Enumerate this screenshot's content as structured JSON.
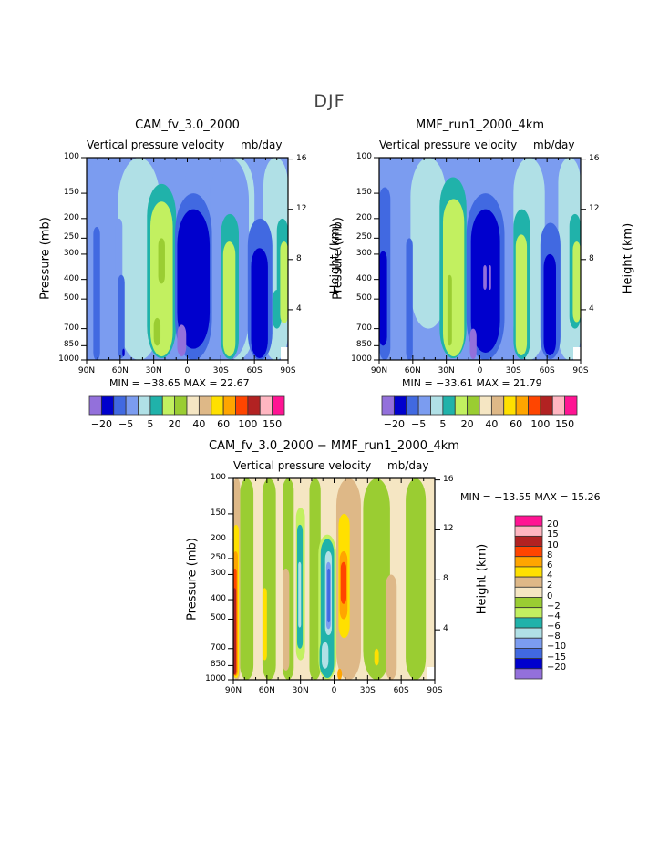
{
  "figure_title": "DJF",
  "palette": {
    "cam_mmf": [
      "#9370db",
      "#0000cd",
      "#4169e1",
      "#7b9cf0",
      "#b0e0e6",
      "#20b2aa",
      "#c2f060",
      "#9acd32",
      "#f5e6c3",
      "#deb887",
      "#ffe000",
      "#ffa500",
      "#ff4500",
      "#b22222",
      "#ffb6c1",
      "#ff1493"
    ],
    "diff": [
      "#9370db",
      "#0000cd",
      "#4169e1",
      "#7b9cf0",
      "#b0e0e6",
      "#20b2aa",
      "#c2f060",
      "#9acd32",
      "#f5e6c3",
      "#deb887",
      "#ffe000",
      "#ffa500",
      "#ff4500",
      "#b22222",
      "#ffb6c1",
      "#ff1493"
    ]
  },
  "chart_data": [
    {
      "type": "heatmap",
      "id": "cam",
      "title": "CAM_fv_3.0_2000",
      "subtitle_left": "Vertical pressure velocity",
      "subtitle_right": "mb/day",
      "ylabel": "Pressure (mb)",
      "y2label": "Height (km)",
      "xticks": [
        "90N",
        "60N",
        "30N",
        "0",
        "30S",
        "60S",
        "90S"
      ],
      "xlim": [
        90,
        -90
      ],
      "yticks": [
        "100",
        "150",
        "200",
        "250",
        "300",
        "400",
        "500",
        "700",
        "850",
        "1000"
      ],
      "ylim_mb": [
        1000,
        100
      ],
      "y2ticks": [
        "16",
        "12",
        "8",
        "4"
      ],
      "min_label": "MIN = −38.65",
      "max_label": "MAX =  22.67",
      "min": -38.65,
      "max": 22.67,
      "colorbar_labels": [
        "−20",
        "−5",
        "5",
        "20",
        "40",
        "60",
        "100",
        "150"
      ],
      "background_level": 3,
      "features": [
        {
          "lat": [
            90,
            62
          ],
          "p": [
            1000,
            100
          ],
          "level": 3
        },
        {
          "lat": [
            62,
            24
          ],
          "p": [
            1000,
            100
          ],
          "level": 4
        },
        {
          "lat": [
            -30,
            -60
          ],
          "p": [
            1000,
            100
          ],
          "level": 4
        },
        {
          "lat": [
            -68,
            -90
          ],
          "p": [
            1000,
            100
          ],
          "level": 4
        },
        {
          "lat": [
            2,
            -20
          ],
          "p": [
            1000,
            100
          ],
          "level": 3
        },
        {
          "lat": [
            -20,
            -55
          ],
          "p": [
            1000,
            100
          ],
          "level": 3
        },
        {
          "lat": [
            90,
            80
          ],
          "p": [
            1000,
            420
          ],
          "level": 3
        },
        {
          "lat": [
            84,
            78
          ],
          "p": [
            1000,
            220
          ],
          "level": 2
        },
        {
          "lat": [
            64,
            58
          ],
          "p": [
            1000,
            200
          ],
          "level": 3
        },
        {
          "lat": [
            62,
            56
          ],
          "p": [
            980,
            380
          ],
          "level": 2
        },
        {
          "lat": [
            58,
            56
          ],
          "p": [
            960,
            880
          ],
          "level": 1
        },
        {
          "lat": [
            36,
            10
          ],
          "p": [
            980,
            135
          ],
          "level": 5
        },
        {
          "lat": [
            33,
            13
          ],
          "p": [
            960,
            165
          ],
          "level": 6
        },
        {
          "lat": [
            26,
            20
          ],
          "p": [
            420,
            250
          ],
          "level": 7
        },
        {
          "lat": [
            30,
            24
          ],
          "p": [
            850,
            620
          ],
          "level": 7
        },
        {
          "lat": [
            11,
            -22
          ],
          "p": [
            1000,
            150
          ],
          "level": 2
        },
        {
          "lat": [
            9,
            -20
          ],
          "p": [
            880,
            180
          ],
          "level": 1
        },
        {
          "lat": [
            9,
            1
          ],
          "p": [
            960,
            670
          ],
          "level": 0
        },
        {
          "lat": [
            -30,
            -46
          ],
          "p": [
            990,
            190
          ],
          "level": 5
        },
        {
          "lat": [
            -32,
            -43
          ],
          "p": [
            960,
            260
          ],
          "level": 6
        },
        {
          "lat": [
            -54,
            -76
          ],
          "p": [
            1000,
            200
          ],
          "level": 2
        },
        {
          "lat": [
            -57,
            -72
          ],
          "p": [
            980,
            280
          ],
          "level": 1
        },
        {
          "lat": [
            -76,
            -84
          ],
          "p": [
            700,
            450
          ],
          "level": 5
        },
        {
          "lat": [
            -80,
            -90
          ],
          "p": [
            640,
            200
          ],
          "level": 5
        },
        {
          "lat": [
            -83,
            -90
          ],
          "p": [
            660,
            260
          ],
          "level": 6
        }
      ]
    },
    {
      "type": "heatmap",
      "id": "mmf",
      "title": "MMF_run1_2000_4km",
      "subtitle_left": "Vertical pressure velocity",
      "subtitle_right": "mb/day",
      "ylabel": "Pressure (mb)",
      "y2label": "Height (km)",
      "xticks": [
        "90N",
        "60N",
        "30N",
        "0",
        "30S",
        "60S",
        "90S"
      ],
      "xlim": [
        90,
        -90
      ],
      "yticks": [
        "100",
        "150",
        "200",
        "250",
        "300",
        "400",
        "500",
        "700",
        "850",
        "1000"
      ],
      "ylim_mb": [
        1000,
        100
      ],
      "y2ticks": [
        "16",
        "12",
        "8",
        "4"
      ],
      "min_label": "MIN = −33.61",
      "max_label": "MAX =  21.79",
      "min": -33.61,
      "max": 21.79,
      "colorbar_labels": [
        "−20",
        "−5",
        "5",
        "20",
        "40",
        "60",
        "100",
        "150"
      ],
      "background_level": 3,
      "features": [
        {
          "lat": [
            62,
            30
          ],
          "p": [
            700,
            100
          ],
          "level": 4
        },
        {
          "lat": [
            -30,
            -58
          ],
          "p": [
            1000,
            100
          ],
          "level": 4
        },
        {
          "lat": [
            -70,
            -90
          ],
          "p": [
            1000,
            100
          ],
          "level": 4
        },
        {
          "lat": [
            90,
            80
          ],
          "p": [
            1000,
            140
          ],
          "level": 2
        },
        {
          "lat": [
            90,
            83
          ],
          "p": [
            850,
            290
          ],
          "level": 1
        },
        {
          "lat": [
            66,
            60
          ],
          "p": [
            1000,
            250
          ],
          "level": 2
        },
        {
          "lat": [
            36,
            12
          ],
          "p": [
            980,
            125
          ],
          "level": 5
        },
        {
          "lat": [
            33,
            14
          ],
          "p": [
            960,
            160
          ],
          "level": 6
        },
        {
          "lat": [
            29,
            25
          ],
          "p": [
            850,
            380
          ],
          "level": 7
        },
        {
          "lat": [
            12,
            -22
          ],
          "p": [
            1000,
            150
          ],
          "level": 2
        },
        {
          "lat": [
            8,
            -18
          ],
          "p": [
            920,
            180
          ],
          "level": 1
        },
        {
          "lat": [
            -3,
            -6
          ],
          "p": [
            450,
            340
          ],
          "level": 0
        },
        {
          "lat": [
            -8,
            -10
          ],
          "p": [
            450,
            340
          ],
          "level": 0
        },
        {
          "lat": [
            9,
            3
          ],
          "p": [
            990,
            700
          ],
          "level": 0
        },
        {
          "lat": [
            -30,
            -45
          ],
          "p": [
            990,
            180
          ],
          "level": 5
        },
        {
          "lat": [
            -32,
            -42
          ],
          "p": [
            950,
            240
          ],
          "level": 6
        },
        {
          "lat": [
            -54,
            -72
          ],
          "p": [
            990,
            210
          ],
          "level": 2
        },
        {
          "lat": [
            -57,
            -68
          ],
          "p": [
            950,
            300
          ],
          "level": 1
        },
        {
          "lat": [
            -80,
            -90
          ],
          "p": [
            700,
            190
          ],
          "level": 5
        },
        {
          "lat": [
            -83,
            -90
          ],
          "p": [
            650,
            260
          ],
          "level": 6
        }
      ]
    },
    {
      "type": "heatmap",
      "id": "diff",
      "title": "CAM_fv_3.0_2000 − MMF_run1_2000_4km",
      "subtitle_left": "Vertical pressure velocity",
      "subtitle_right": "mb/day",
      "ylabel": "Pressure (mb)",
      "y2label": "Height (km)",
      "xticks": [
        "90N",
        "60N",
        "30N",
        "0",
        "30S",
        "60S",
        "90S"
      ],
      "xlim": [
        90,
        -90
      ],
      "yticks": [
        "100",
        "150",
        "200",
        "250",
        "300",
        "400",
        "500",
        "700",
        "850",
        "1000"
      ],
      "ylim_mb": [
        1000,
        100
      ],
      "y2ticks": [
        "16",
        "12",
        "8",
        "4"
      ],
      "min_label": "MIN = −13.55",
      "max_label": "MAX =  15.26",
      "min": -13.55,
      "max": 15.26,
      "colorbar_labels": [
        "20",
        "15",
        "10",
        "8",
        "6",
        "4",
        "2",
        "0",
        "−2",
        "−4",
        "−6",
        "−8",
        "−10",
        "−15",
        "−20"
      ],
      "background_level": 8,
      "features": [
        {
          "lat": [
            84,
            72
          ],
          "p": [
            1000,
            100
          ],
          "level": 7
        },
        {
          "lat": [
            64,
            52
          ],
          "p": [
            1000,
            100
          ],
          "level": 7
        },
        {
          "lat": [
            46,
            36
          ],
          "p": [
            1000,
            100
          ],
          "level": 7
        },
        {
          "lat": [
            22,
            12
          ],
          "p": [
            1000,
            100
          ],
          "level": 7
        },
        {
          "lat": [
            -26,
            -50
          ],
          "p": [
            1000,
            100
          ],
          "level": 7
        },
        {
          "lat": [
            -64,
            -82
          ],
          "p": [
            1000,
            100
          ],
          "level": 7
        },
        {
          "lat": [
            90,
            84
          ],
          "p": [
            1000,
            100
          ],
          "level": 9
        },
        {
          "lat": [
            90,
            85
          ],
          "p": [
            980,
            170
          ],
          "level": 10
        },
        {
          "lat": [
            90,
            86
          ],
          "p": [
            960,
            230
          ],
          "level": 11
        },
        {
          "lat": [
            90,
            87
          ],
          "p": [
            950,
            280
          ],
          "level": 12
        },
        {
          "lat": [
            90,
            87.5
          ],
          "p": [
            940,
            350
          ],
          "level": 13
        },
        {
          "lat": [
            34,
            26
          ],
          "p": [
            800,
            140
          ],
          "level": 6
        },
        {
          "lat": [
            33,
            28
          ],
          "p": [
            700,
            170
          ],
          "level": 5
        },
        {
          "lat": [
            32,
            29.5
          ],
          "p": [
            550,
            260
          ],
          "level": 4
        },
        {
          "lat": [
            14,
            -2
          ],
          "p": [
            1000,
            190
          ],
          "level": 6
        },
        {
          "lat": [
            12,
            0
          ],
          "p": [
            980,
            200
          ],
          "level": 5
        },
        {
          "lat": [
            8,
            2
          ],
          "p": [
            600,
            230
          ],
          "level": 4
        },
        {
          "lat": [
            7,
            3
          ],
          "p": [
            560,
            260
          ],
          "level": 3
        },
        {
          "lat": [
            6,
            3.5
          ],
          "p": [
            520,
            280
          ],
          "level": 2
        },
        {
          "lat": [
            13,
            2
          ],
          "p": [
            960,
            620
          ],
          "level": 5
        },
        {
          "lat": [
            11,
            5
          ],
          "p": [
            880,
            650
          ],
          "level": 4
        },
        {
          "lat": [
            -2,
            -24
          ],
          "p": [
            1000,
            100
          ],
          "level": 9
        },
        {
          "lat": [
            -4,
            -14
          ],
          "p": [
            620,
            150
          ],
          "level": 10
        },
        {
          "lat": [
            -5,
            -12
          ],
          "p": [
            500,
            230
          ],
          "level": 11
        },
        {
          "lat": [
            -6,
            -11
          ],
          "p": [
            420,
            260
          ],
          "level": 12
        },
        {
          "lat": [
            -3,
            -7
          ],
          "p": [
            1000,
            880
          ],
          "level": 11
        },
        {
          "lat": [
            -46,
            -56
          ],
          "p": [
            1000,
            300
          ],
          "level": 9
        },
        {
          "lat": [
            46,
            40
          ],
          "p": [
            900,
            280
          ],
          "level": 9
        },
        {
          "lat": [
            -36,
            -40
          ],
          "p": [
            850,
            700
          ],
          "level": 10
        },
        {
          "lat": [
            64,
            60
          ],
          "p": [
            800,
            350
          ],
          "level": 10
        }
      ]
    }
  ]
}
